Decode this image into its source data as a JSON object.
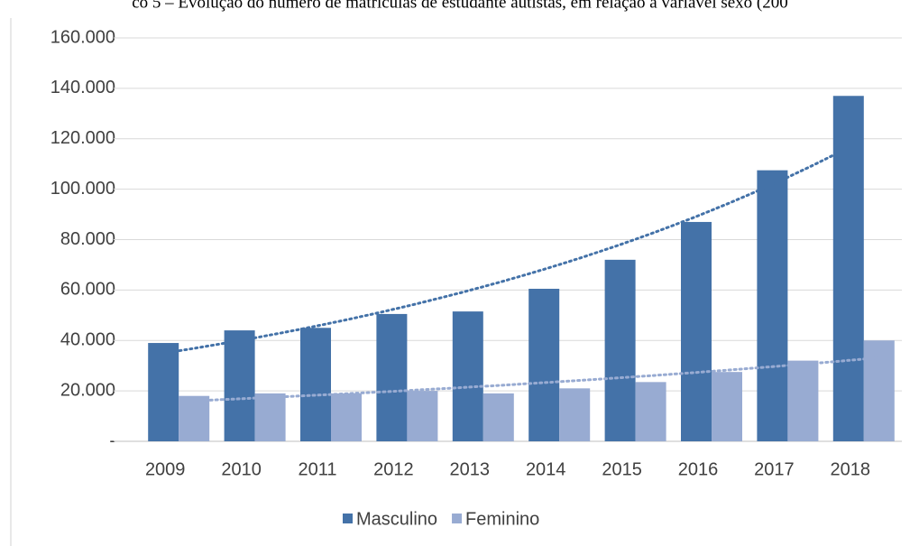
{
  "chart_data": {
    "type": "bar",
    "title": "co 5 – Evolução do número de matrículas de estudante autistas, em relação à variável sexo (200",
    "categories": [
      "2009",
      "2010",
      "2011",
      "2012",
      "2013",
      "2014",
      "2015",
      "2016",
      "2017",
      "2018"
    ],
    "series": [
      {
        "name": "Masculino",
        "color": "#4472a8",
        "values": [
          39000,
          44000,
          45000,
          50500,
          51500,
          60500,
          72000,
          87000,
          107500,
          137000
        ]
      },
      {
        "name": "Feminino",
        "color": "#98abd2",
        "values": [
          18000,
          19000,
          19000,
          20000,
          19000,
          21000,
          23500,
          27500,
          32000,
          40000
        ]
      }
    ],
    "ylim": [
      0,
      160000
    ],
    "yticks": [
      {
        "value": 0,
        "label": "-"
      },
      {
        "value": 20000,
        "label": "20.000"
      },
      {
        "value": 40000,
        "label": "40.000"
      },
      {
        "value": 60000,
        "label": "60.000"
      },
      {
        "value": 80000,
        "label": "80.000"
      },
      {
        "value": 100000,
        "label": "100.000"
      },
      {
        "value": 120000,
        "label": "120.000"
      },
      {
        "value": 140000,
        "label": "140.000"
      },
      {
        "value": 160000,
        "label": "160.000"
      }
    ],
    "grid": true,
    "trendline": "exponential",
    "legend": "bottom"
  }
}
